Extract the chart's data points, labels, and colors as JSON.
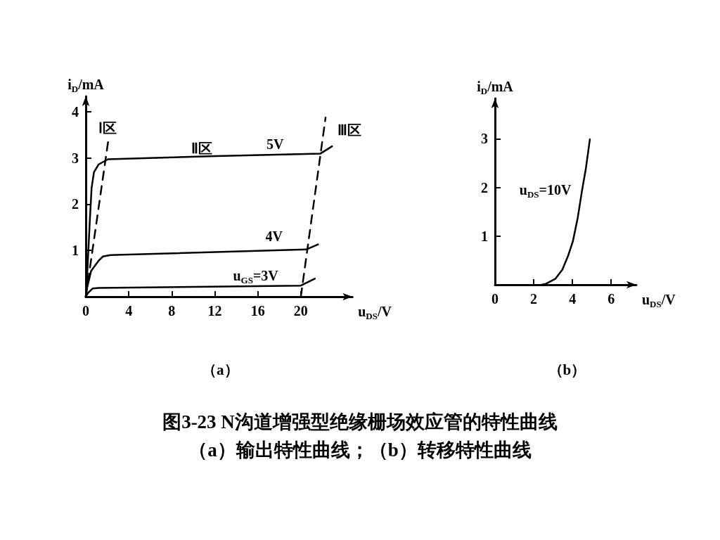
{
  "chart_data": [
    {
      "type": "line",
      "title": "（a）",
      "xlabel": "u$_{DS}$/V",
      "ylabel": "i$_{D}$/mA",
      "xlim": [
        0,
        24.8
      ],
      "xticks": [
        0,
        4,
        8,
        12,
        16,
        20
      ],
      "ylim": [
        0,
        4.33
      ],
      "yticks": [
        1,
        2,
        3,
        4
      ],
      "grid": false,
      "marker": "none",
      "series": [
        {
          "name": "5V",
          "color": "#000000",
          "line_style": "solid",
          "x": [
            0,
            0.11,
            0.37,
            0.54,
            0.76,
            1.2,
            2.07,
            12.1,
            21.8,
            22.9
          ],
          "values": [
            0,
            0.37,
            1.62,
            2.35,
            2.69,
            2.86,
            2.97,
            3.04,
            3.09,
            3.25
          ]
        },
        {
          "name": "4V",
          "color": "#000000",
          "line_style": "solid",
          "x": [
            0,
            0.1,
            0.5,
            1.2,
            1.6,
            2.3,
            20.5,
            21.6
          ],
          "values": [
            0,
            0.17,
            0.56,
            0.78,
            0.87,
            0.9,
            1.02,
            1.13
          ]
        },
        {
          "name": "u$_{GS}$=3V",
          "color": "#000000",
          "line_style": "solid",
          "x": [
            0,
            0.2,
            0.65,
            1.2,
            20,
            21.3
          ],
          "values": [
            0,
            0.08,
            0.18,
            0.19,
            0.24,
            0.39
          ]
        },
        {
          "color": "#000000",
          "line_style": "dashed",
          "x": [
            0,
            2.07
          ],
          "values": [
            0,
            3.34
          ]
        },
        {
          "color": "#000000",
          "line_style": "dashed",
          "x": [
            20,
            22.3
          ],
          "values": [
            0,
            3.87
          ]
        }
      ],
      "annotations": [
        "Ⅰ区",
        "Ⅱ区",
        "Ⅲ区",
        "图3-23  N沟道增强型绝缘栅场效应管的特性曲线",
        "（a）输出特性曲线；（b）转移特性曲线"
      ]
    },
    {
      "type": "line",
      "title": "（b）",
      "xlabel": "u$_{DS}$/V",
      "ylabel": "i$_{D}$/mA",
      "xlim": [
        0,
        7.3
      ],
      "xticks": [
        0,
        2,
        4,
        6
      ],
      "ylim": [
        0,
        3.83
      ],
      "yticks": [
        1,
        2,
        3
      ],
      "grid": false,
      "marker": "none",
      "series": [
        {
          "name": "u$_{DS}$=10V",
          "color": "#000000",
          "line_style": "solid",
          "x": [
            2.4,
            2.63,
            3.11,
            3.48,
            3.78,
            4.02,
            4.27,
            4.5,
            4.69,
            4.9
          ],
          "values": [
            0,
            0.02,
            0.12,
            0.31,
            0.6,
            0.89,
            1.37,
            1.95,
            2.38,
            2.99
          ]
        }
      ]
    }
  ]
}
